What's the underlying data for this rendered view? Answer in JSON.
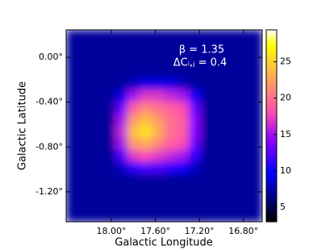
{
  "chart_data": {
    "type": "heatmap",
    "x_label": "Galactic Longitude",
    "y_label": "Galactic Latitude",
    "annotations": [
      "β = 1.35",
      "ΔCᵢ,ⱼ = 0.4"
    ],
    "xlim": [
      18.41,
      16.63
    ],
    "ylim": [
      -1.467,
      0.245
    ],
    "xticks": [
      {
        "value": 18.0,
        "label": "18.00°"
      },
      {
        "value": 17.6,
        "label": "17.60°"
      },
      {
        "value": 17.2,
        "label": "17.20°"
      },
      {
        "value": 16.8,
        "label": "16.80°"
      }
    ],
    "yticks": [
      {
        "value": 0.0,
        "label": "0.00°"
      },
      {
        "value": -0.4,
        "label": "-0.40°"
      },
      {
        "value": -0.8,
        "label": "-0.80°"
      },
      {
        "value": -1.2,
        "label": "-1.20°"
      }
    ],
    "colormap": "gnuplot2",
    "clim": [
      3,
      29.4
    ],
    "cticks": [
      5,
      10,
      15,
      20,
      25
    ],
    "z": [
      [
        7,
        7,
        7,
        7,
        7,
        7,
        7,
        7,
        7,
        7,
        7,
        7,
        7,
        7,
        7,
        7
      ],
      [
        7,
        7,
        7,
        7,
        7,
        7,
        7,
        7,
        7,
        7,
        7,
        7,
        7,
        7,
        7,
        7
      ],
      [
        7,
        7,
        7,
        7,
        7,
        7,
        7,
        7,
        7,
        7,
        7,
        7,
        7,
        7,
        7,
        7
      ],
      [
        7,
        7,
        7,
        7,
        7,
        7,
        7,
        7,
        7,
        7,
        7,
        7,
        7,
        7,
        7,
        7
      ],
      [
        7,
        7,
        7,
        7,
        7,
        8,
        9,
        9,
        9,
        8,
        7,
        7,
        7,
        7,
        7,
        7
      ],
      [
        7,
        7,
        7,
        7,
        9,
        15,
        17,
        17,
        16,
        15,
        10,
        7,
        7,
        7,
        7,
        7
      ],
      [
        7,
        7,
        7,
        7,
        13,
        19,
        21,
        20,
        19,
        18,
        13,
        7,
        7,
        7,
        7,
        7
      ],
      [
        7,
        7,
        7,
        7,
        15,
        22,
        24,
        22,
        20,
        19,
        14,
        7,
        7,
        7,
        7,
        7
      ],
      [
        7,
        7,
        7,
        7,
        16,
        24,
        26,
        23,
        20,
        19,
        14,
        7,
        7,
        7,
        7,
        7
      ],
      [
        7,
        7,
        7,
        7,
        15,
        22,
        23,
        21,
        19,
        18,
        13,
        7,
        7,
        7,
        7,
        7
      ],
      [
        7,
        7,
        7,
        7,
        12,
        17,
        18,
        17,
        16,
        15,
        11,
        7,
        7,
        7,
        7,
        7
      ],
      [
        7,
        7,
        7,
        7,
        8,
        11,
        12,
        12,
        11,
        10,
        8,
        7,
        7,
        7,
        7,
        7
      ],
      [
        7,
        7,
        7,
        7,
        7,
        7,
        7,
        7,
        7,
        7,
        7,
        7,
        7,
        7,
        7,
        7
      ],
      [
        7,
        7,
        7,
        7,
        7,
        7,
        7,
        7,
        7,
        7,
        7,
        7,
        7,
        7,
        7,
        7
      ],
      [
        7,
        7,
        7,
        7,
        7,
        7,
        7,
        7,
        7,
        7,
        7,
        7,
        7,
        7,
        7,
        7
      ],
      [
        7,
        7,
        7,
        7,
        7,
        7,
        7,
        7,
        7,
        7,
        7,
        7,
        7,
        7,
        7,
        7
      ]
    ]
  }
}
